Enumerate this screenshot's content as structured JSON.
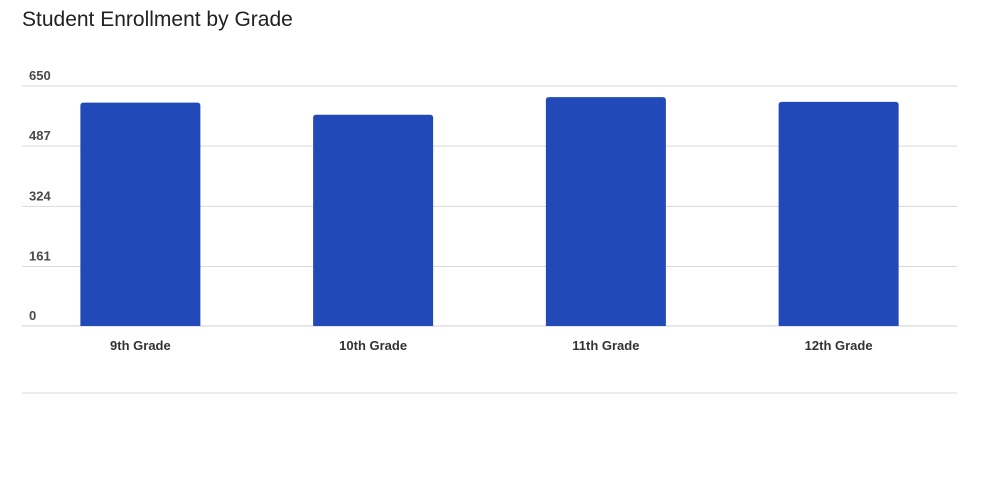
{
  "chart_data": {
    "type": "bar",
    "title": "Student Enrollment by Grade",
    "xlabel": "",
    "ylabel": "",
    "categories": [
      "9th Grade",
      "10th Grade",
      "11th Grade",
      "12th Grade"
    ],
    "values": [
      605,
      572,
      620,
      607
    ],
    "ylim": [
      0,
      650
    ],
    "yticks": [
      0,
      161,
      324,
      487,
      650
    ],
    "grid": true,
    "legend": "none",
    "bar_color": "#2149B7"
  }
}
